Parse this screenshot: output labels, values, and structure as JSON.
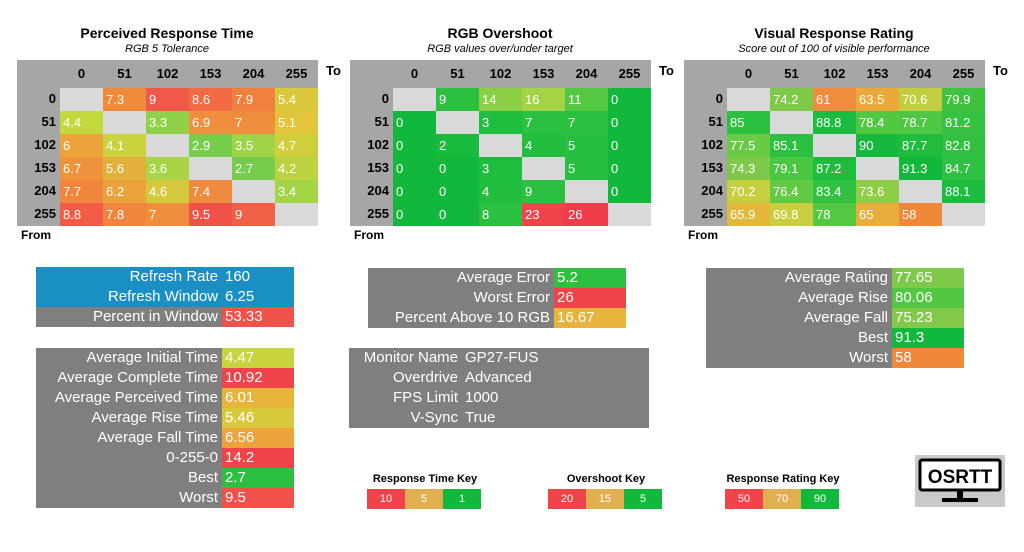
{
  "matrices": [
    {
      "id": "perceived",
      "title": "Perceived Response Time",
      "subtitle": "RGB 5 Tolerance",
      "to_label": "To",
      "from_label": "From",
      "cols": [
        "0",
        "51",
        "102",
        "153",
        "204",
        "255"
      ],
      "rows": [
        "0",
        "51",
        "102",
        "153",
        "204",
        "255"
      ],
      "cells": [
        [
          null,
          "7.3",
          "9",
          "8.6",
          "7.9",
          "5.4"
        ],
        [
          "4.4",
          null,
          "3.3",
          "6.9",
          "7",
          "5.1"
        ],
        [
          "6",
          "4.1",
          null,
          "2.9",
          "3.5",
          "4.7"
        ],
        [
          "6.7",
          "5.6",
          "3.6",
          null,
          "2.7",
          "4.2"
        ],
        [
          "7.7",
          "6.2",
          "4.6",
          "7.4",
          null,
          "3.4"
        ],
        [
          "8.8",
          "7.8",
          "7",
          "9.5",
          "9",
          null
        ]
      ],
      "colors": [
        [
          "#d9d9d9",
          "#ef8a3a",
          "#f1584a",
          "#f26a44",
          "#f08040",
          "#d9c83c"
        ],
        [
          "#c4d83c",
          "#d9d9d9",
          "#8fd24a",
          "#ef8e3e",
          "#ef8d3e",
          "#e3c43d"
        ],
        [
          "#eda23a",
          "#c9d33e",
          "#d9d9d9",
          "#77cd4c",
          "#9fd348",
          "#cfcf3e"
        ],
        [
          "#ee933c",
          "#e2b03b",
          "#a9d446",
          "#d9d9d9",
          "#76cc4c",
          "#bcd240"
        ],
        [
          "#f0863d",
          "#eca23a",
          "#d6c83d",
          "#f08a3e",
          "#d9d9d9",
          "#a2d446"
        ],
        [
          "#f35a48",
          "#f0863e",
          "#ef8e3d",
          "#f0524a",
          "#f06046",
          "#d9d9d9"
        ]
      ]
    },
    {
      "id": "overshoot",
      "title": "RGB Overshoot",
      "subtitle": "RGB values over/under target",
      "to_label": "To",
      "from_label": "From",
      "cols": [
        "0",
        "51",
        "102",
        "153",
        "204",
        "255"
      ],
      "rows": [
        "0",
        "51",
        "102",
        "153",
        "204",
        "255"
      ],
      "cells": [
        [
          null,
          "9",
          "14",
          "16",
          "11",
          "0"
        ],
        [
          "0",
          null,
          "3",
          "7",
          "7",
          "0"
        ],
        [
          "0",
          "2",
          null,
          "4",
          "5",
          "0"
        ],
        [
          "0",
          "0",
          "3",
          null,
          "5",
          "0"
        ],
        [
          "0",
          "0",
          "4",
          "9",
          null,
          "0"
        ],
        [
          "0",
          "0",
          "8",
          "23",
          "26",
          null
        ]
      ],
      "colors": [
        [
          "#d9d9d9",
          "#2cc040",
          "#8bcf44",
          "#a5d346",
          "#55c842",
          "#12b83c"
        ],
        [
          "#12b83c",
          "#d9d9d9",
          "#1fbd3e",
          "#2cc040",
          "#2cc040",
          "#12b83c"
        ],
        [
          "#12b83c",
          "#17bb3e",
          "#d9d9d9",
          "#22be3e",
          "#27bf3f",
          "#12b83c"
        ],
        [
          "#12b83c",
          "#12b83c",
          "#1fbd3e",
          "#d9d9d9",
          "#27bf3f",
          "#12b83c"
        ],
        [
          "#12b83c",
          "#12b83c",
          "#22be3e",
          "#2cc040",
          "#d9d9d9",
          "#12b83c"
        ],
        [
          "#12b83c",
          "#12b83c",
          "#2cc040",
          "#f0434a",
          "#ef3c48",
          "#d9d9d9"
        ]
      ]
    },
    {
      "id": "rating",
      "title": "Visual Response Rating",
      "subtitle": "Score out of 100 of visible performance",
      "to_label": "To",
      "from_label": "From",
      "cols": [
        "0",
        "51",
        "102",
        "153",
        "204",
        "255"
      ],
      "rows": [
        "0",
        "51",
        "102",
        "153",
        "204",
        "255"
      ],
      "cells": [
        [
          null,
          "74.2",
          "61",
          "63.5",
          "70.6",
          "79.9"
        ],
        [
          "85",
          null,
          "88.8",
          "78.4",
          "78.7",
          "81.2"
        ],
        [
          "77.5",
          "85.1",
          null,
          "90",
          "87.7",
          "82.8"
        ],
        [
          "74.3",
          "79.1",
          "87.2",
          null,
          "91.3",
          "84.7"
        ],
        [
          "70.2",
          "76.4",
          "83.4",
          "73.6",
          null,
          "88.1"
        ],
        [
          "65.9",
          "69.8",
          "78",
          "65",
          "58",
          null
        ]
      ],
      "colors": [
        [
          "#d9d9d9",
          "#7ec94a",
          "#ef8d3e",
          "#eca83a",
          "#c1cf3e",
          "#3ec240"
        ],
        [
          "#2cc040",
          "#d9d9d9",
          "#1abb3e",
          "#52c842",
          "#4ec742",
          "#36c140"
        ],
        [
          "#69ca45",
          "#2cc040",
          "#d9d9d9",
          "#15b93d",
          "#1fbd3e",
          "#33c040"
        ],
        [
          "#7ec94a",
          "#49c642",
          "#1fbd3e",
          "#d9d9d9",
          "#12b83c",
          "#2ec040"
        ],
        [
          "#c7cf3e",
          "#63ca44",
          "#32c040",
          "#90cd46",
          "#d9d9d9",
          "#1dbc3e"
        ],
        [
          "#e2b83b",
          "#c9cd3e",
          "#55c842",
          "#e8ad3a",
          "#ef8838",
          "#d9d9d9"
        ]
      ]
    }
  ],
  "panels": {
    "refresh": [
      {
        "label": "Refresh Rate",
        "value": "160",
        "lbg": "#1a8fc4",
        "vbg": "#1a8fc4"
      },
      {
        "label": "Refresh Window",
        "value": "6.25",
        "lbg": "#1a8fc4",
        "vbg": "#1a8fc4"
      },
      {
        "label": "Percent in Window",
        "value": "53.33",
        "lbg": "#7f7f7f",
        "vbg": "#f0524a"
      }
    ],
    "times": [
      {
        "label": "Average Initial Time",
        "value": "4.47",
        "vbg": "#c9d33e"
      },
      {
        "label": "Average Complete Time",
        "value": "10.92",
        "vbg": "#f0434a"
      },
      {
        "label": "Average Perceived Time",
        "value": "6.01",
        "vbg": "#e6b43b"
      },
      {
        "label": "Average Rise Time",
        "value": "5.46",
        "vbg": "#d9c83c"
      },
      {
        "label": "Average Fall Time",
        "value": "6.56",
        "vbg": "#eda23a"
      },
      {
        "label": "0-255-0",
        "value": "14.2",
        "vbg": "#f0434a"
      },
      {
        "label": "Best",
        "value": "2.7",
        "vbg": "#2cc040"
      },
      {
        "label": "Worst",
        "value": "9.5",
        "vbg": "#f0524a"
      }
    ],
    "errors": [
      {
        "label": "Average Error",
        "value": "5.2",
        "vbg": "#2cc040"
      },
      {
        "label": "Worst Error",
        "value": "26",
        "vbg": "#f0434a"
      },
      {
        "label": "Percent Above 10 RGB",
        "value": "16.67",
        "vbg": "#e6b43b"
      }
    ],
    "monitor": [
      {
        "label": "Monitor Name",
        "value": "GP27-FUS"
      },
      {
        "label": "Overdrive",
        "value": "Advanced"
      },
      {
        "label": "FPS Limit",
        "value": "1000"
      },
      {
        "label": "V-Sync",
        "value": "True"
      }
    ],
    "ratings": [
      {
        "label": "Average Rating",
        "value": "77.65",
        "vbg": "#7ec94a"
      },
      {
        "label": "Average Rise",
        "value": "80.06",
        "vbg": "#52c842"
      },
      {
        "label": "Average Fall",
        "value": "75.23",
        "vbg": "#84c94a"
      },
      {
        "label": "Best",
        "value": "91.3",
        "vbg": "#12b83c"
      },
      {
        "label": "Worst",
        "value": "58",
        "vbg": "#ef8838"
      }
    ]
  },
  "keys": [
    {
      "title": "Response Time Key",
      "items": [
        {
          "v": "10",
          "c": "#f0434a"
        },
        {
          "v": "5",
          "c": "#e0b050"
        },
        {
          "v": "1",
          "c": "#12b83c"
        }
      ]
    },
    {
      "title": "Overshoot Key",
      "items": [
        {
          "v": "20",
          "c": "#f0434a"
        },
        {
          "v": "15",
          "c": "#e0b050"
        },
        {
          "v": "5",
          "c": "#12b83c"
        }
      ]
    },
    {
      "title": "Response Rating Key",
      "items": [
        {
          "v": "50",
          "c": "#f0434a"
        },
        {
          "v": "70",
          "c": "#e0b050"
        },
        {
          "v": "90",
          "c": "#12b83c"
        }
      ]
    }
  ],
  "logo_text": "OSRTT",
  "chart_data": [
    {
      "type": "heatmap",
      "title": "Perceived Response Time",
      "subtitle": "RGB 5 Tolerance",
      "xlabel": "To",
      "ylabel": "From",
      "x": [
        0,
        51,
        102,
        153,
        204,
        255
      ],
      "y": [
        0,
        51,
        102,
        153,
        204,
        255
      ],
      "values": [
        [
          null,
          7.3,
          9,
          8.6,
          7.9,
          5.4
        ],
        [
          4.4,
          null,
          3.3,
          6.9,
          7,
          5.1
        ],
        [
          6,
          4.1,
          null,
          2.9,
          3.5,
          4.7
        ],
        [
          6.7,
          5.6,
          3.6,
          null,
          2.7,
          4.2
        ],
        [
          7.7,
          6.2,
          4.6,
          7.4,
          null,
          3.4
        ],
        [
          8.8,
          7.8,
          7,
          9.5,
          9,
          null
        ]
      ]
    },
    {
      "type": "heatmap",
      "title": "RGB Overshoot",
      "subtitle": "RGB values over/under target",
      "xlabel": "To",
      "ylabel": "From",
      "x": [
        0,
        51,
        102,
        153,
        204,
        255
      ],
      "y": [
        0,
        51,
        102,
        153,
        204,
        255
      ],
      "values": [
        [
          null,
          9,
          14,
          16,
          11,
          0
        ],
        [
          0,
          null,
          3,
          7,
          7,
          0
        ],
        [
          0,
          2,
          null,
          4,
          5,
          0
        ],
        [
          0,
          0,
          3,
          null,
          5,
          0
        ],
        [
          0,
          0,
          4,
          9,
          null,
          0
        ],
        [
          0,
          0,
          8,
          23,
          26,
          null
        ]
      ]
    },
    {
      "type": "heatmap",
      "title": "Visual Response Rating",
      "subtitle": "Score out of 100 of visible performance",
      "xlabel": "To",
      "ylabel": "From",
      "x": [
        0,
        51,
        102,
        153,
        204,
        255
      ],
      "y": [
        0,
        51,
        102,
        153,
        204,
        255
      ],
      "values": [
        [
          null,
          74.2,
          61,
          63.5,
          70.6,
          79.9
        ],
        [
          85,
          null,
          88.8,
          78.4,
          78.7,
          81.2
        ],
        [
          77.5,
          85.1,
          null,
          90,
          87.7,
          82.8
        ],
        [
          74.3,
          79.1,
          87.2,
          null,
          91.3,
          84.7
        ],
        [
          70.2,
          76.4,
          83.4,
          73.6,
          null,
          88.1
        ],
        [
          65.9,
          69.8,
          78,
          65,
          58,
          null
        ]
      ]
    }
  ]
}
